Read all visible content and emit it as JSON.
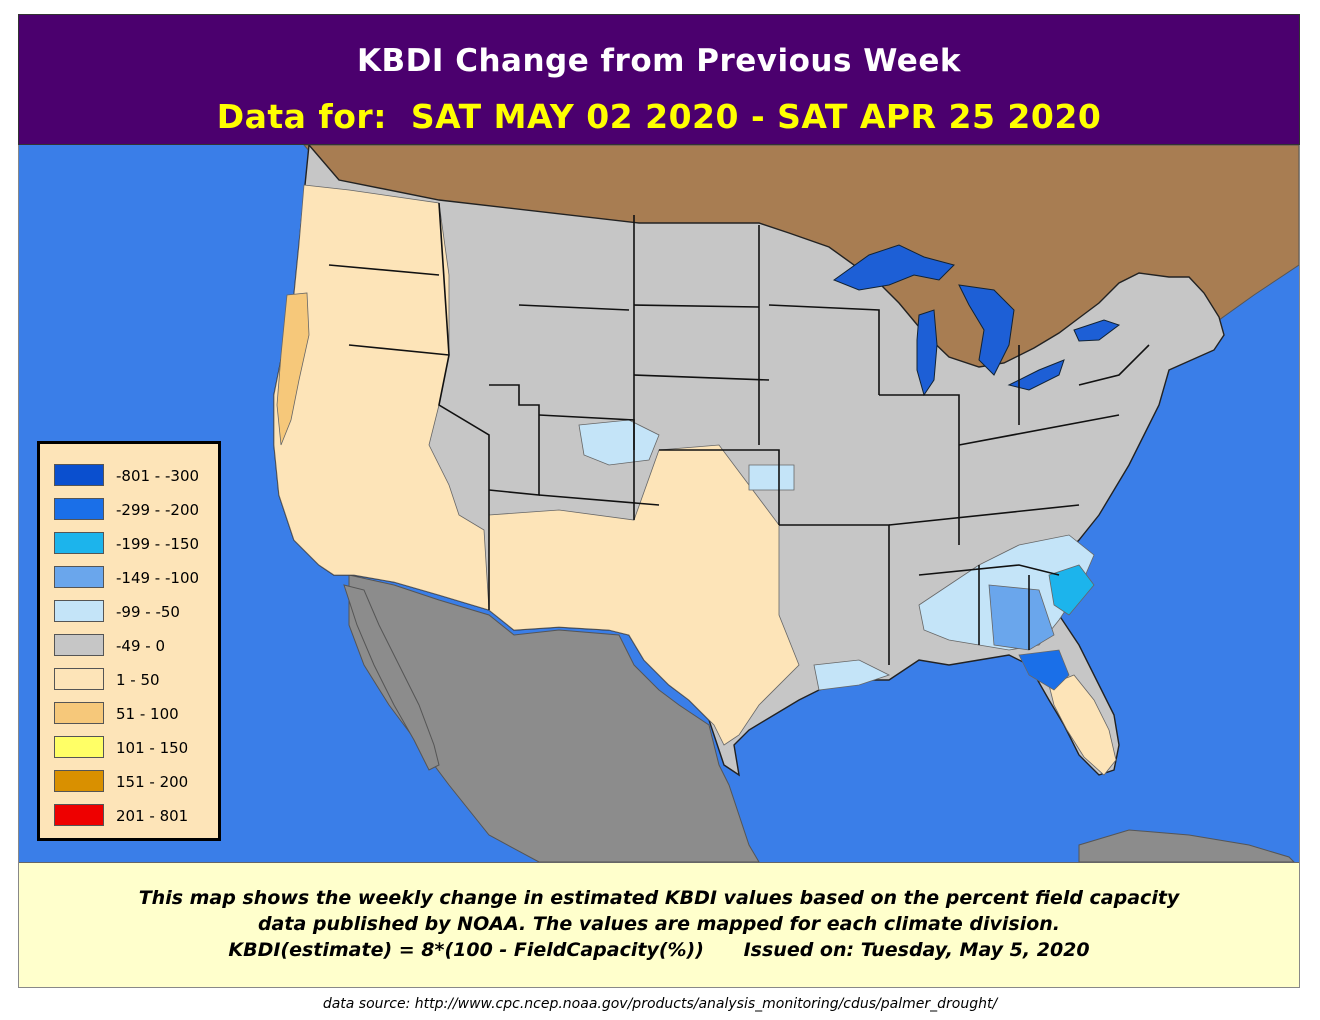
{
  "header": {
    "title": "KBDI Change from Previous Week",
    "subtitle": "Data for:  SAT MAY 02 2020 - SAT APR 25 2020"
  },
  "colors": {
    "header_bg": "#4b006e",
    "ocean": "#3a7ee8",
    "canada": "#a87d52",
    "mexico": "#8c8c8c",
    "great_lakes": "#1d5fd6",
    "footer_bg": "#ffffcc",
    "legend_bg": "#fde4b8"
  },
  "legend": {
    "items": [
      {
        "label": "-801 - -300",
        "color": "#0a4fcf"
      },
      {
        "label": "-299 - -200",
        "color": "#1a6fe8"
      },
      {
        "label": "-199 - -150",
        "color": "#1cb4ec"
      },
      {
        "label": "-149 - -100",
        "color": "#6aa6ec"
      },
      {
        "label": "-99 - -50",
        "color": "#c4e4f8"
      },
      {
        "label": "-49 - 0",
        "color": "#c6c6c6"
      },
      {
        "label": "1 - 50",
        "color": "#fde4b8"
      },
      {
        "label": "51 - 100",
        "color": "#f6c87a"
      },
      {
        "label": "101 - 150",
        "color": "#ffff66"
      },
      {
        "label": "151 - 200",
        "color": "#d99000"
      },
      {
        "label": "201 - 801",
        "color": "#ee0000"
      }
    ]
  },
  "footer": {
    "line1": "This map shows the weekly change in estimated KBDI values based on the percent field capacity",
    "line2": "data published by NOAA. The values are mapped for each climate division.",
    "line3": "KBDI(estimate) = 8*(100 - FieldCapacity(%))      Issued on: Tuesday, May 5, 2020"
  },
  "source": "data source:  http://www.cpc.ncep.noaa.gov/products/analysis_monitoring/cdus/palmer_drought/"
}
